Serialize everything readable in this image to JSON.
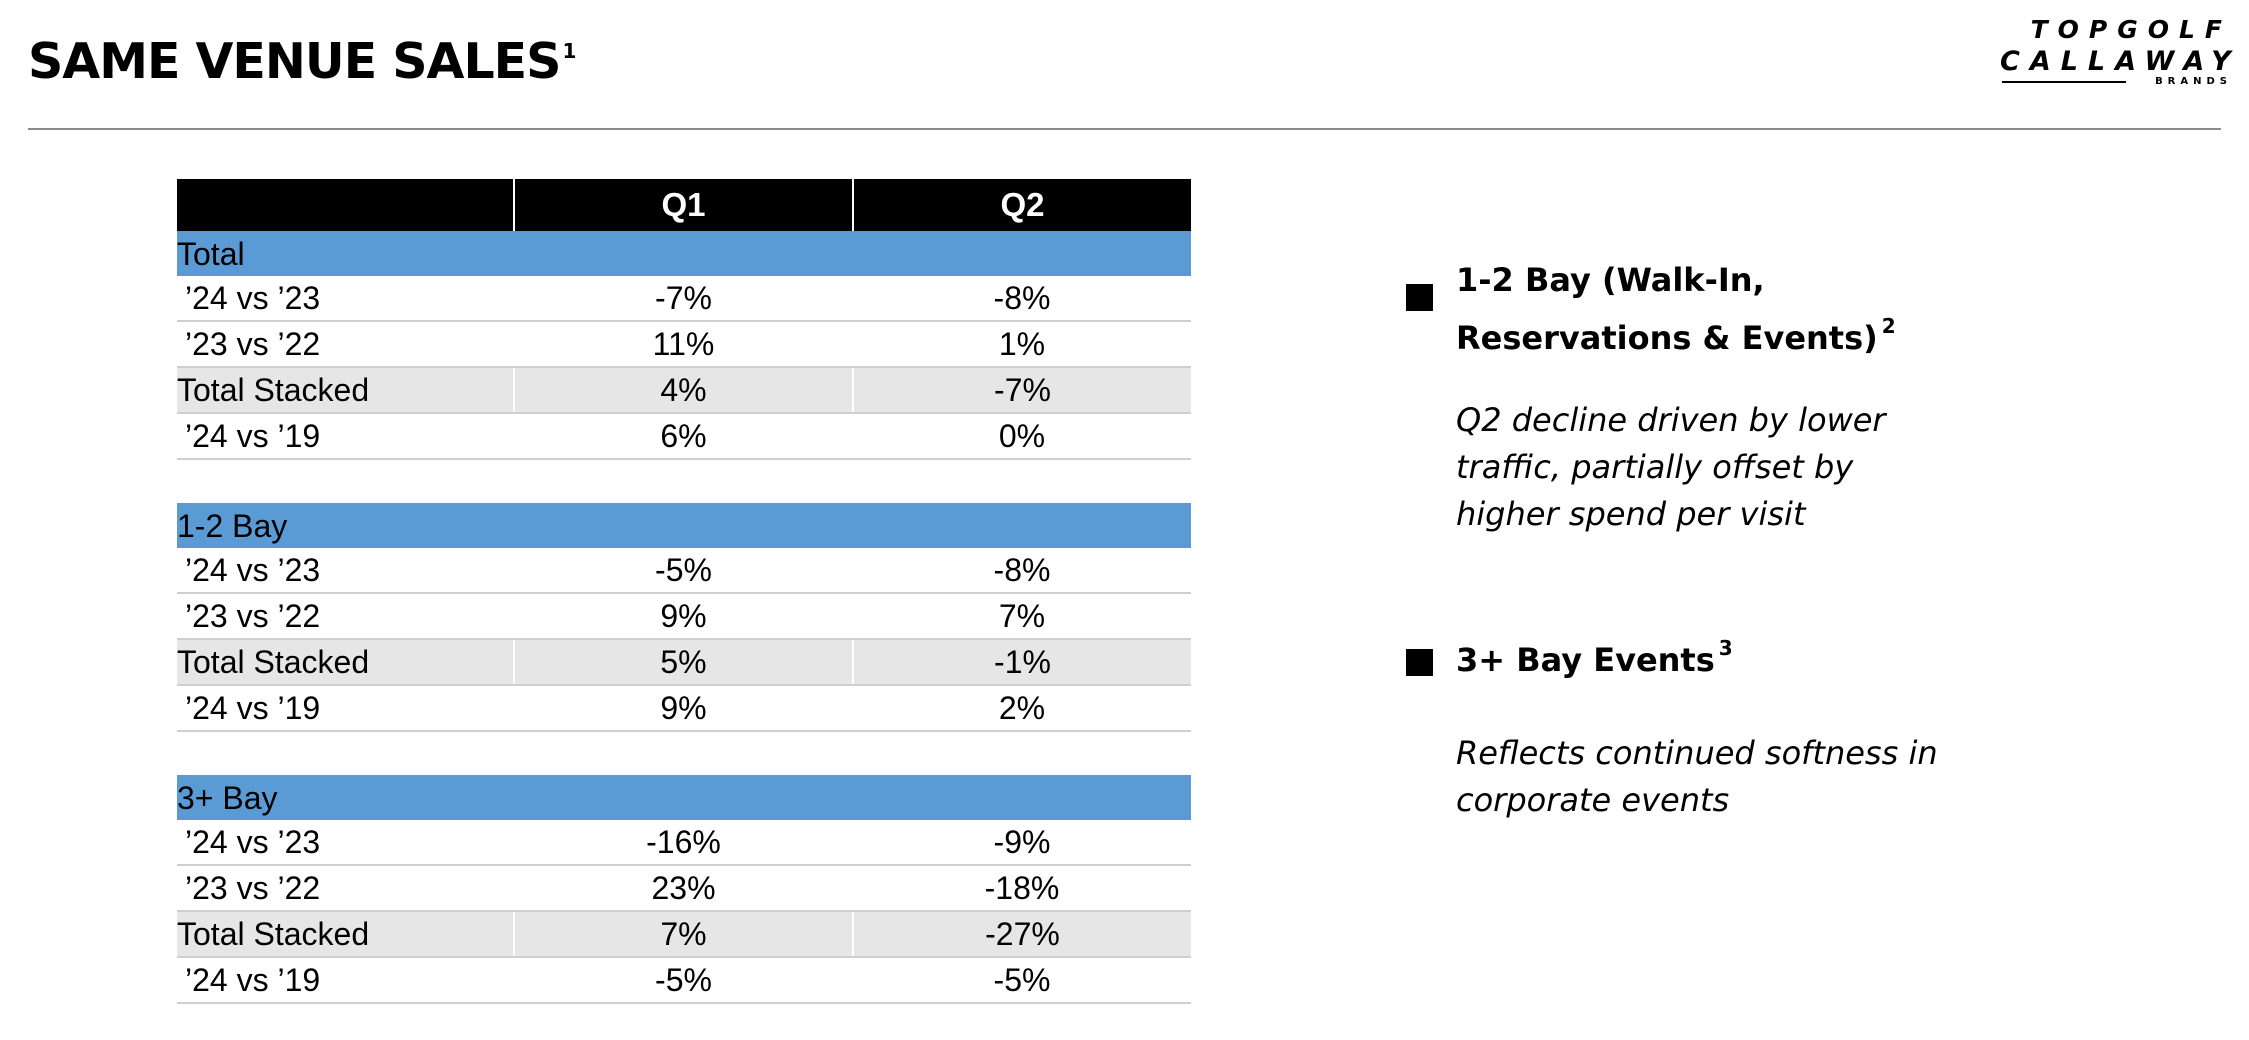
{
  "header": {
    "title": "SAME VENUE SALES",
    "title_footnote": "1",
    "logo": {
      "line1": "TOPGOLF",
      "line2": "CALLAWAY",
      "line3": "BRANDS"
    }
  },
  "table": {
    "columns": [
      "",
      "Q1",
      "Q2"
    ],
    "sections": [
      {
        "title": "Total",
        "rows": [
          {
            "label": "’24 vs ’23",
            "q1": "-7%",
            "q2": "-8%",
            "kind": "normal"
          },
          {
            "label": "’23 vs ’22",
            "q1": "11%",
            "q2": "1%",
            "kind": "normal"
          },
          {
            "label": "Total Stacked",
            "q1": "4%",
            "q2": "-7%",
            "kind": "stacked"
          },
          {
            "label": "’24 vs ’19",
            "q1": "6%",
            "q2": "0%",
            "kind": "normal"
          }
        ]
      },
      {
        "title": "1-2 Bay",
        "rows": [
          {
            "label": "’24 vs ’23",
            "q1": "-5%",
            "q2": "-8%",
            "kind": "normal"
          },
          {
            "label": "’23 vs ’22",
            "q1": "9%",
            "q2": "7%",
            "kind": "normal"
          },
          {
            "label": "Total Stacked",
            "q1": "5%",
            "q2": "-1%",
            "kind": "stacked"
          },
          {
            "label": "’24 vs ’19",
            "q1": "9%",
            "q2": "2%",
            "kind": "normal"
          }
        ]
      },
      {
        "title": "3+ Bay",
        "rows": [
          {
            "label": "’24 vs ’23",
            "q1": "-16%",
            "q2": "-9%",
            "kind": "normal"
          },
          {
            "label": "’23 vs ’22",
            "q1": "23%",
            "q2": "-18%",
            "kind": "normal"
          },
          {
            "label": "Total Stacked",
            "q1": "7%",
            "q2": "-27%",
            "kind": "stacked"
          },
          {
            "label": "’24 vs ’19",
            "q1": "-5%",
            "q2": "-5%",
            "kind": "normal"
          }
        ]
      }
    ]
  },
  "commentary": [
    {
      "heading": "1-2 Bay (Walk-In,\nReservations & Events)",
      "footnote": "2",
      "body": "Q2 decline driven by lower\ntraffic, partially offset by\nhigher spend per visit"
    },
    {
      "heading": "3+ Bay Events",
      "footnote": "3",
      "body": "Reflects continued softness in\ncorporate events"
    }
  ],
  "colors": {
    "header_bg": "#000000",
    "section_bg": "#5b9bd5",
    "stacked_bg": "#e6e6e6",
    "rule": "#8c8c8c"
  }
}
